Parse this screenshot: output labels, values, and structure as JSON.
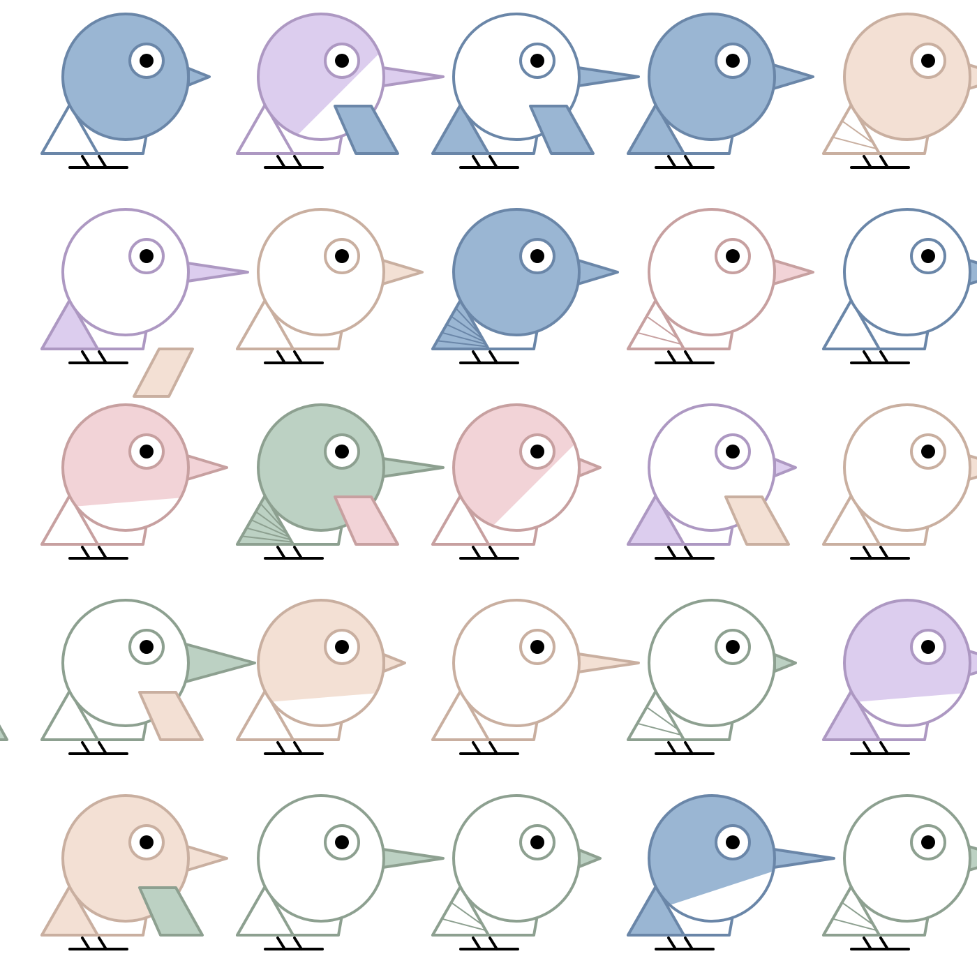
{
  "palettes": {
    "blue": {
      "stroke": "#6a86a8",
      "fill": "#9ab6d3"
    },
    "purple": {
      "stroke": "#ad98c2",
      "fill": "#dccdee"
    },
    "peach": {
      "stroke": "#c9afa0",
      "fill": "#f3e0d4"
    },
    "rose": {
      "stroke": "#c7a0a0",
      "fill": "#f2d3d7"
    },
    "green": {
      "stroke": "#8da090",
      "fill": "#bcd1c3"
    }
  },
  "ink": "#000000",
  "birds": [
    [
      {
        "color": "blue",
        "body": "full",
        "beak": "small",
        "wing": "open",
        "tail": "none"
      },
      {
        "color": "purple",
        "body": "diag",
        "beak": "long",
        "wing": "open",
        "tail": "none"
      },
      {
        "color": "blue",
        "body": "none",
        "beak": "long",
        "wing": "fill",
        "tail": "flag"
      },
      {
        "color": "blue",
        "body": "full",
        "beak": "med",
        "wing": "fill",
        "tail": "flag"
      },
      {
        "color": "peach",
        "body": "full",
        "beak": "med",
        "wing": "lines",
        "tail": "none"
      }
    ],
    [
      {
        "color": "purple",
        "body": "none",
        "beak": "long",
        "wing": "fill",
        "tail": "none"
      },
      {
        "color": "peach",
        "body": "none",
        "beak": "med",
        "wing": "open",
        "tail": "down"
      },
      {
        "color": "blue",
        "body": "full",
        "beak": "med",
        "wing": "hatch",
        "tail": "none"
      },
      {
        "color": "rose",
        "body": "none",
        "beak": "med",
        "wing": "lines",
        "tail": "none"
      },
      {
        "color": "blue",
        "body": "none",
        "beak": "med",
        "wing": "open",
        "tail": "none"
      }
    ],
    [
      {
        "color": "rose",
        "body": "top",
        "beak": "med",
        "wing": "open",
        "tail": "none"
      },
      {
        "color": "green",
        "body": "full",
        "beak": "long",
        "wing": "hatch",
        "tail": "none"
      },
      {
        "color": "rose",
        "body": "diag",
        "beak": "small",
        "wing": "open",
        "tail": "flag"
      },
      {
        "color": "purple",
        "body": "none",
        "beak": "small",
        "wing": "fill",
        "tail": "none"
      },
      {
        "color": "peach",
        "body": "none",
        "beak": "med",
        "wing": "open",
        "tail": "flag"
      }
    ],
    [
      {
        "color": "green",
        "body": "none",
        "beak": "big",
        "wing": "open",
        "tail": "flag"
      },
      {
        "color": "peach",
        "body": "top",
        "beak": "small",
        "wing": "open",
        "tail": "flag"
      },
      {
        "color": "peach",
        "body": "none",
        "beak": "long",
        "wing": "open",
        "tail": "none"
      },
      {
        "color": "green",
        "body": "none",
        "beak": "small",
        "wing": "lines",
        "tail": "none"
      },
      {
        "color": "purple",
        "body": "top",
        "beak": "med",
        "wing": "fill",
        "tail": "none"
      }
    ],
    [
      {
        "color": "peach",
        "body": "full",
        "beak": "med",
        "wing": "fill",
        "tail": "none"
      },
      {
        "color": "green",
        "body": "none",
        "beak": "long",
        "wing": "open",
        "tail": "flag"
      },
      {
        "color": "green",
        "body": "none",
        "beak": "small",
        "wing": "lines",
        "tail": "none"
      },
      {
        "color": "blue",
        "body": "topslant",
        "beak": "long",
        "wing": "fill",
        "tail": "none"
      },
      {
        "color": "green",
        "body": "none",
        "beak": "med",
        "wing": "lines",
        "tail": "none"
      }
    ]
  ]
}
